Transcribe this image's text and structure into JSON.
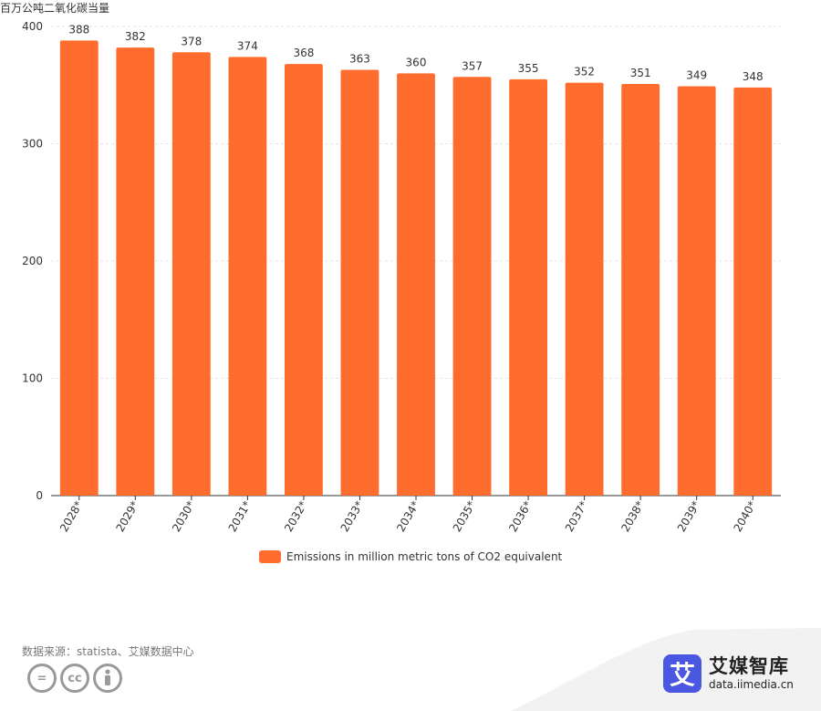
{
  "unit_label": "百万公吨二氧化碳当量",
  "legend": {
    "label": "Emissions in million metric tons of CO2 equivalent",
    "color": "#ff6d2e"
  },
  "source": "数据来源：statista、艾媒数据中心",
  "license_icons": [
    "cc-icon",
    "by-icon",
    "equal-icon"
  ],
  "brand": {
    "logo_char": "艾",
    "name": "艾媒智库",
    "url": "data.iimedia.cn"
  },
  "chart_data": {
    "type": "bar",
    "title": "",
    "xlabel": "",
    "ylabel": "百万公吨二氧化碳当量",
    "ylim": [
      0,
      400
    ],
    "yticks": [
      0,
      100,
      200,
      300,
      400
    ],
    "grid": true,
    "legend_position": "bottom",
    "categories": [
      "2028*",
      "2029*",
      "2030*",
      "2031*",
      "2032*",
      "2033*",
      "2034*",
      "2035*",
      "2036*",
      "2037*",
      "2038*",
      "2039*",
      "2040*"
    ],
    "series": [
      {
        "name": "Emissions in million metric tons of CO2 equivalent",
        "color": "#ff6d2e",
        "values": [
          388,
          382,
          378,
          374,
          368,
          363,
          360,
          357,
          355,
          352,
          351,
          349,
          348
        ]
      }
    ]
  }
}
